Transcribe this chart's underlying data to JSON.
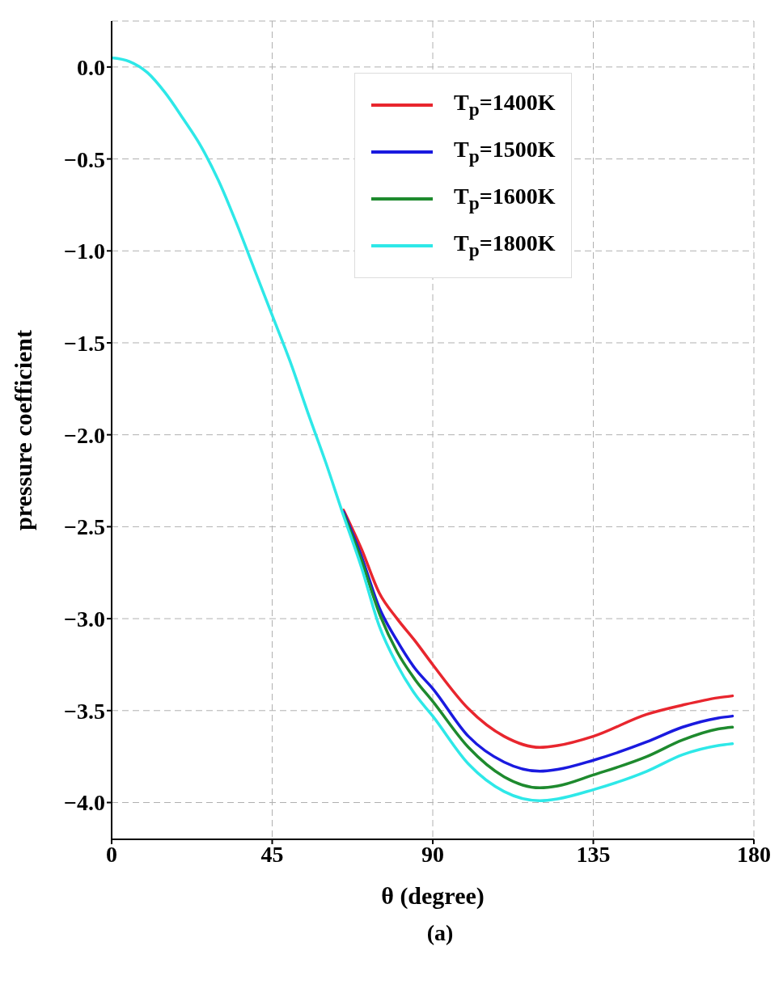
{
  "chart_data": {
    "type": "line",
    "xlabel": "θ (degree)",
    "ylabel": "pressure coefficient",
    "annotations": [
      "(a)"
    ],
    "x": [
      0,
      5,
      10,
      15,
      20,
      25,
      30,
      35,
      40,
      45,
      50,
      55,
      60,
      65,
      70,
      75,
      80,
      85,
      90,
      100,
      110,
      120,
      125,
      135,
      150,
      160,
      170,
      174
    ],
    "xlim": [
      0,
      180
    ],
    "xticks": [
      0,
      45,
      90,
      135,
      180
    ],
    "ylim": [
      -4.2,
      0.25
    ],
    "yticks": [
      {
        "value": 0,
        "label": "0.0"
      },
      {
        "value": -0.5,
        "label": "−0.5"
      },
      {
        "value": -1,
        "label": "−1.0"
      },
      {
        "value": -1.5,
        "label": "−1.5"
      },
      {
        "value": -2,
        "label": "−2.0"
      },
      {
        "value": -2.5,
        "label": "−2.5"
      },
      {
        "value": -3,
        "label": "−3.0"
      },
      {
        "value": -3.5,
        "label": "−3.5"
      },
      {
        "value": -4,
        "label": "−4.0"
      }
    ],
    "grid": true,
    "legend": "top right",
    "line_style": "solid",
    "marker": "none",
    "series": [
      {
        "name": "T$_{p}$=1400K",
        "color": "#e8262e",
        "values": [
          null,
          null,
          null,
          null,
          null,
          null,
          null,
          null,
          null,
          null,
          null,
          null,
          null,
          -2.41,
          -2.62,
          -2.86,
          -3.0,
          -3.12,
          -3.25,
          -3.49,
          -3.64,
          -3.7,
          -3.69,
          -3.64,
          -3.52,
          -3.47,
          -3.43,
          -3.42
        ]
      },
      {
        "name": "T$_{p}$=1500K",
        "color": "#1a1adf",
        "values": [
          null,
          null,
          null,
          null,
          null,
          null,
          null,
          null,
          null,
          null,
          null,
          null,
          null,
          -2.42,
          -2.66,
          -2.94,
          -3.12,
          -3.27,
          -3.38,
          -3.64,
          -3.78,
          -3.83,
          -3.82,
          -3.77,
          -3.67,
          -3.59,
          -3.54,
          -3.53
        ]
      },
      {
        "name": "T$_{p}$=1600K",
        "color": "#1e8a2e",
        "values": [
          null,
          null,
          null,
          null,
          null,
          null,
          null,
          null,
          null,
          null,
          null,
          null,
          null,
          -2.43,
          -2.68,
          -2.97,
          -3.18,
          -3.33,
          -3.45,
          -3.7,
          -3.86,
          -3.92,
          -3.91,
          -3.85,
          -3.75,
          -3.66,
          -3.6,
          -3.59
        ]
      },
      {
        "name": "T$_{p}$=1800K",
        "color": "#2ee8e8",
        "values": [
          0.05,
          0.03,
          -0.03,
          -0.14,
          -0.28,
          -0.43,
          -0.62,
          -0.85,
          -1.1,
          -1.35,
          -1.6,
          -1.88,
          -2.15,
          -2.44,
          -2.72,
          -3.04,
          -3.25,
          -3.41,
          -3.53,
          -3.79,
          -3.94,
          -3.99,
          -3.98,
          -3.93,
          -3.83,
          -3.74,
          -3.69,
          -3.68
        ]
      }
    ]
  }
}
